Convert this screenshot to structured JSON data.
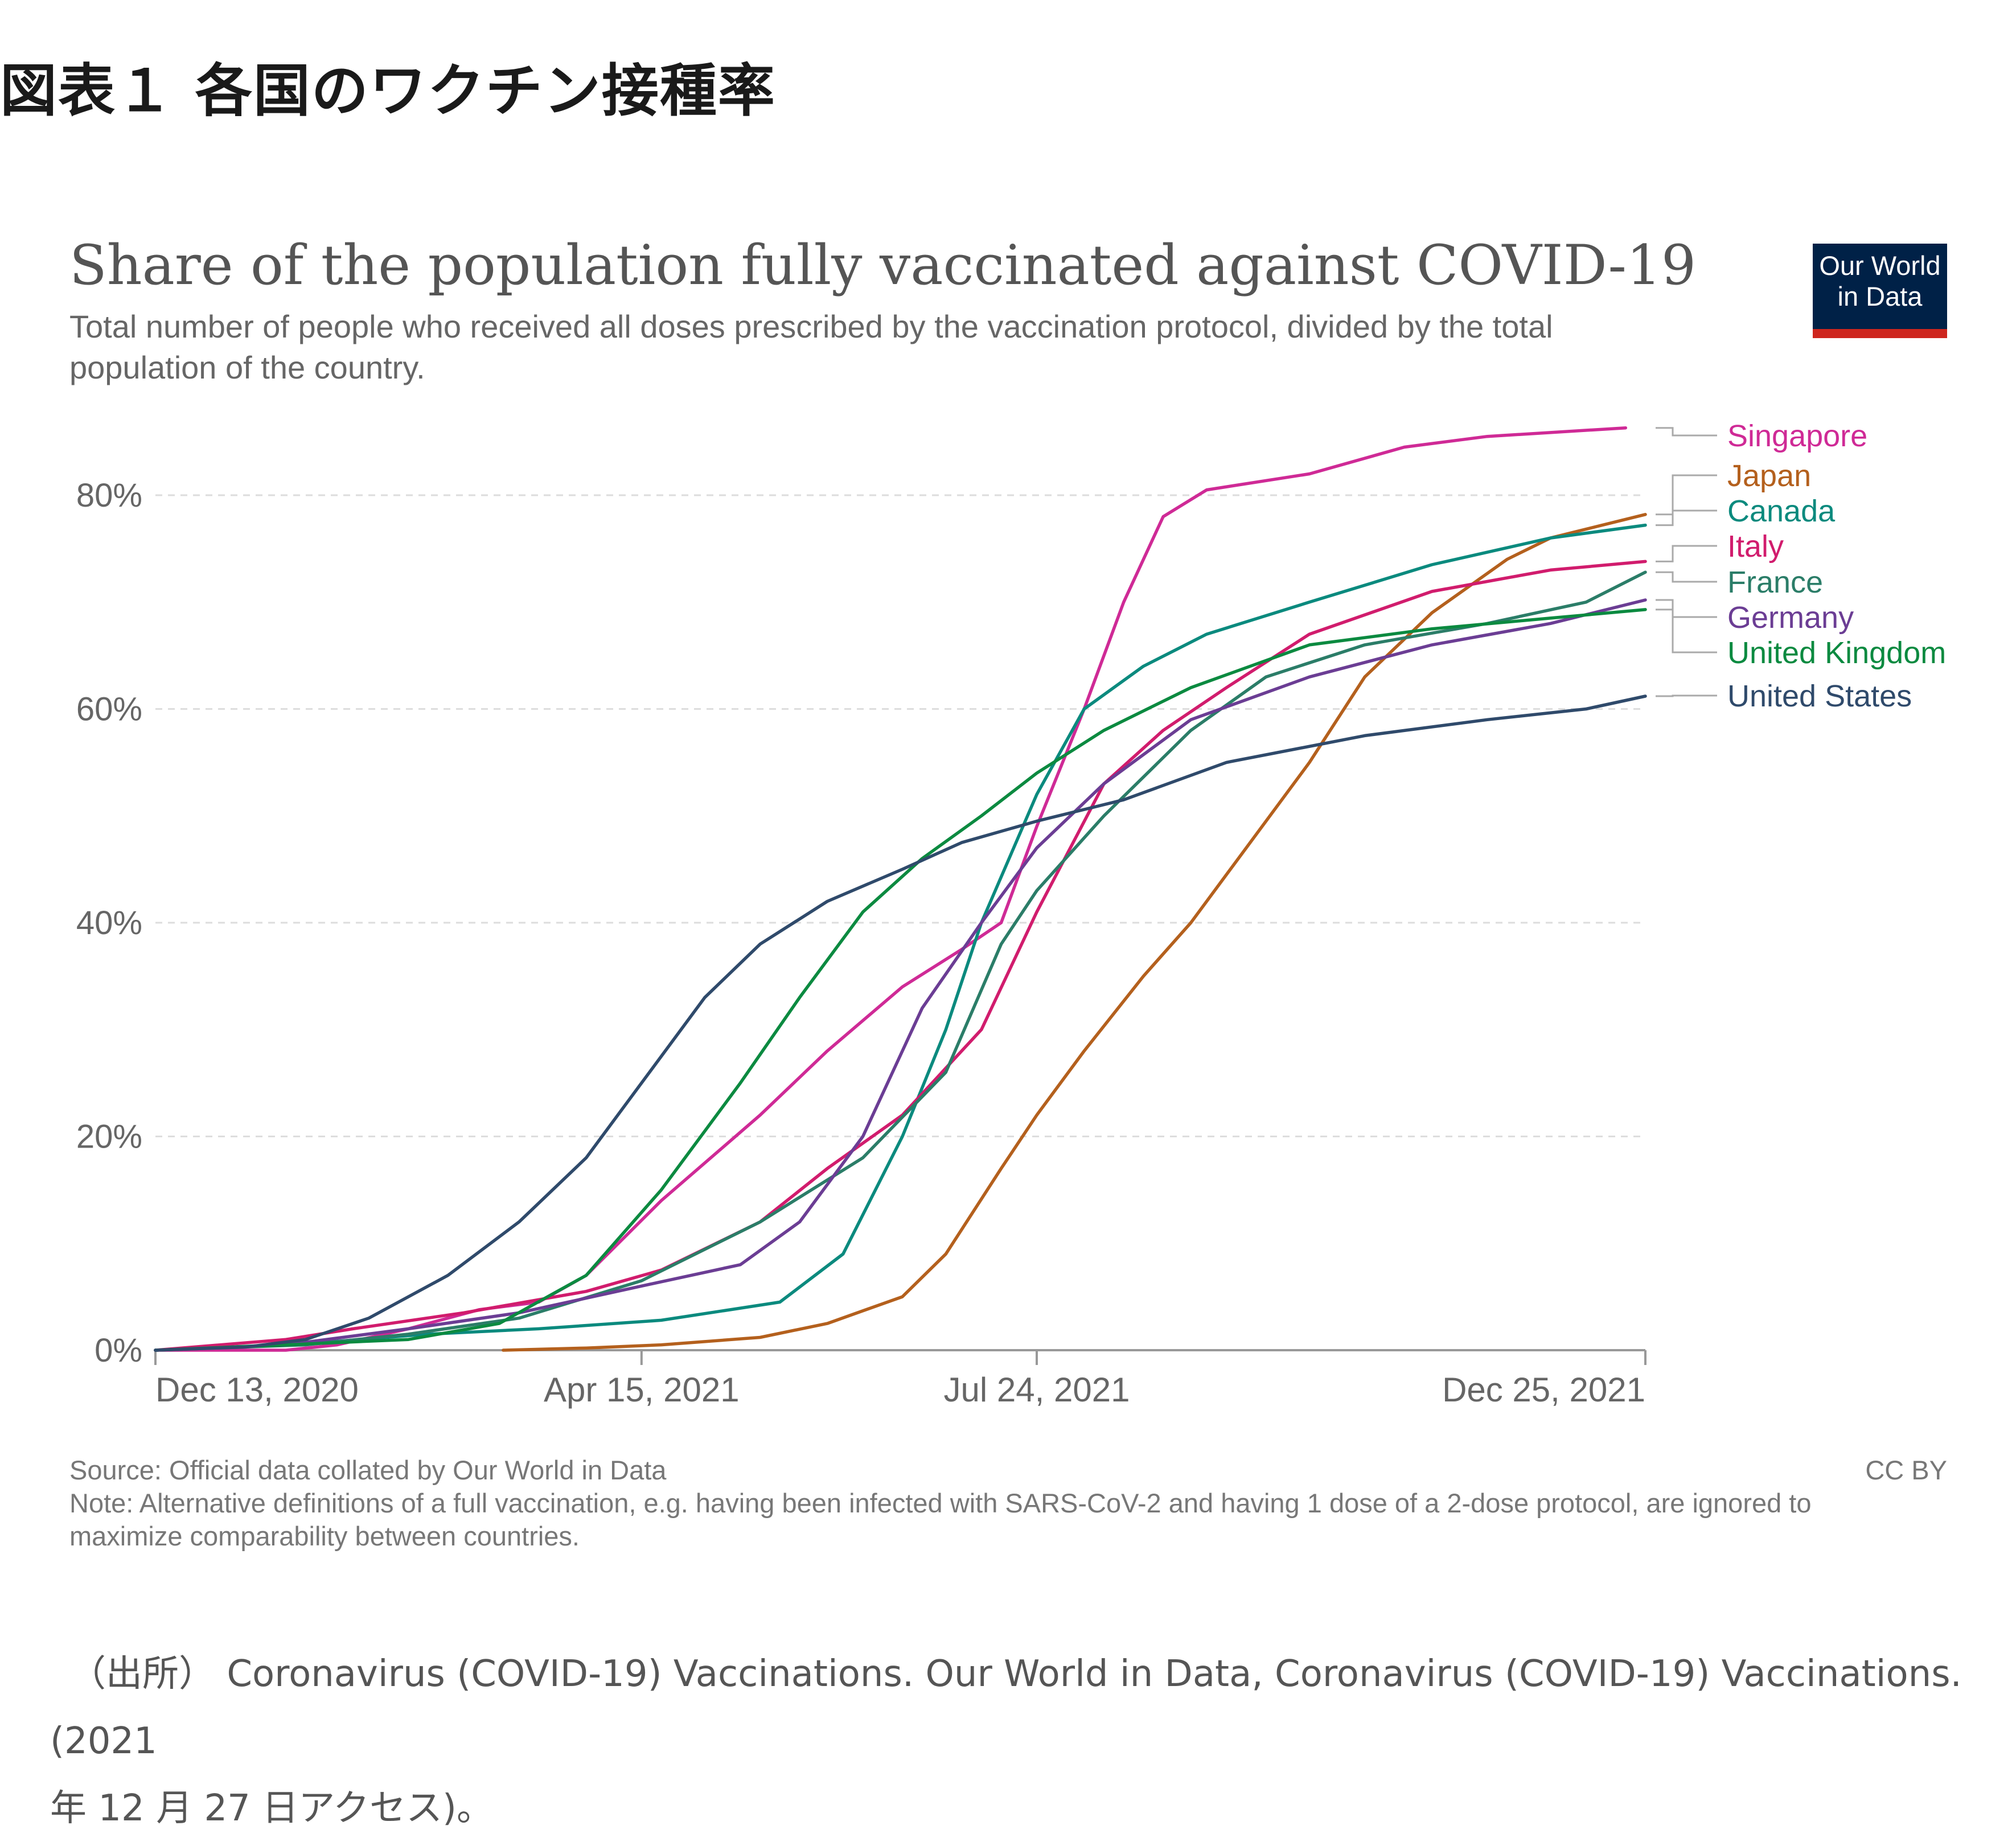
{
  "figure_title": "図表１ 各国のワクチン接種率",
  "logo": {
    "line1": "Our World",
    "line2": "in Data"
  },
  "footer": {
    "source": "Source: Official data collated by Our World in Data",
    "note": "Note: Alternative definitions of a full vaccination, e.g. having been infected with SARS-CoV-2 and having 1 dose of a 2-dose protocol, are ignored to maximize comparability between countries.",
    "license": "CC BY"
  },
  "citation": {
    "line1": "（出所） Coronavirus (COVID-19) Vaccinations. Our World in Data, Coronavirus (COVID-19) Vaccinations. (2021",
    "line2": "年 12 月 27 日アクセス)。"
  },
  "colors": {
    "Singapore": "#cf2a96",
    "Japan": "#b4601d",
    "Canada": "#0b8a7e",
    "Italy": "#d11c6d",
    "France": "#2b7d68",
    "Germany": "#6b3d94",
    "United Kingdom": "#0b8a40",
    "United States": "#2f4a6b"
  },
  "chart_data": {
    "type": "line",
    "title": "Share of the population fully vaccinated against COVID-19",
    "subtitle": "Total number of people who received all doses prescribed by the vaccination protocol, divided by the total population of the country.",
    "xlabel": "",
    "ylabel": "",
    "xlim": [
      "2020-12-13",
      "2021-12-25"
    ],
    "ylim": [
      0,
      85
    ],
    "y_ticks": [
      "0%",
      "20%",
      "40%",
      "60%",
      "80%"
    ],
    "y_tick_values": [
      0,
      20,
      40,
      60,
      80
    ],
    "x_ticks": [
      "Dec 13, 2020",
      "Apr 15, 2021",
      "Jul 24, 2021",
      "Dec 25, 2021"
    ],
    "x_tick_dates": [
      "2020-12-13",
      "2021-04-15",
      "2021-07-24",
      "2021-12-25"
    ],
    "grid": "horizontal dashed",
    "legend": "right, end-of-line labels",
    "series": [
      {
        "name": "Singapore",
        "points": [
          [
            "2020-12-13",
            0
          ],
          [
            "2021-01-15",
            0
          ],
          [
            "2021-01-28",
            0.5
          ],
          [
            "2021-02-15",
            2
          ],
          [
            "2021-03-05",
            3.8
          ],
          [
            "2021-03-20",
            4.5
          ],
          [
            "2021-04-01",
            7
          ],
          [
            "2021-04-20",
            14
          ],
          [
            "2021-05-15",
            22
          ],
          [
            "2021-06-01",
            28
          ],
          [
            "2021-06-20",
            34
          ],
          [
            "2021-07-05",
            37.5
          ],
          [
            "2021-07-15",
            40
          ],
          [
            "2021-07-24",
            49
          ],
          [
            "2021-08-05",
            60
          ],
          [
            "2021-08-15",
            70
          ],
          [
            "2021-08-25",
            78
          ],
          [
            "2021-09-05",
            80.5
          ],
          [
            "2021-10-01",
            82
          ],
          [
            "2021-10-25",
            84.5
          ],
          [
            "2021-11-15",
            85.5
          ],
          [
            "2021-12-20",
            86.3
          ]
        ]
      },
      {
        "name": "Japan",
        "points": [
          [
            "2021-03-11",
            0
          ],
          [
            "2021-04-01",
            0.2
          ],
          [
            "2021-04-20",
            0.5
          ],
          [
            "2021-05-15",
            1.2
          ],
          [
            "2021-06-01",
            2.5
          ],
          [
            "2021-06-20",
            5
          ],
          [
            "2021-07-01",
            9
          ],
          [
            "2021-07-15",
            17
          ],
          [
            "2021-07-24",
            22
          ],
          [
            "2021-08-05",
            28
          ],
          [
            "2021-08-20",
            35
          ],
          [
            "2021-09-01",
            40
          ],
          [
            "2021-09-15",
            47
          ],
          [
            "2021-10-01",
            55
          ],
          [
            "2021-10-15",
            63
          ],
          [
            "2021-11-01",
            69
          ],
          [
            "2021-11-20",
            74
          ],
          [
            "2021-12-01",
            76
          ],
          [
            "2021-12-25",
            78.2
          ]
        ]
      },
      {
        "name": "Canada",
        "points": [
          [
            "2020-12-13",
            0
          ],
          [
            "2021-01-20",
            0.6
          ],
          [
            "2021-02-20",
            1.5
          ],
          [
            "2021-03-20",
            2
          ],
          [
            "2021-04-20",
            2.8
          ],
          [
            "2021-05-20",
            4.5
          ],
          [
            "2021-06-05",
            9
          ],
          [
            "2021-06-20",
            20
          ],
          [
            "2021-07-01",
            30
          ],
          [
            "2021-07-10",
            40
          ],
          [
            "2021-07-24",
            52
          ],
          [
            "2021-08-05",
            60
          ],
          [
            "2021-08-20",
            64
          ],
          [
            "2021-09-05",
            67
          ],
          [
            "2021-10-01",
            70
          ],
          [
            "2021-11-01",
            73.5
          ],
          [
            "2021-12-01",
            76
          ],
          [
            "2021-12-25",
            77.2
          ]
        ]
      },
      {
        "name": "Italy",
        "points": [
          [
            "2020-12-13",
            0
          ],
          [
            "2021-01-15",
            1
          ],
          [
            "2021-02-01",
            2
          ],
          [
            "2021-03-01",
            3.5
          ],
          [
            "2021-04-01",
            5.5
          ],
          [
            "2021-04-20",
            7.5
          ],
          [
            "2021-05-15",
            12
          ],
          [
            "2021-06-01",
            17
          ],
          [
            "2021-06-20",
            22
          ],
          [
            "2021-07-10",
            30
          ],
          [
            "2021-07-24",
            41
          ],
          [
            "2021-08-10",
            53
          ],
          [
            "2021-08-25",
            58
          ],
          [
            "2021-09-10",
            62
          ],
          [
            "2021-10-01",
            67
          ],
          [
            "2021-11-01",
            71
          ],
          [
            "2021-12-01",
            73
          ],
          [
            "2021-12-25",
            73.8
          ]
        ]
      },
      {
        "name": "France",
        "points": [
          [
            "2020-12-13",
            0
          ],
          [
            "2021-01-20",
            0.5
          ],
          [
            "2021-02-15",
            1.5
          ],
          [
            "2021-03-15",
            3
          ],
          [
            "2021-04-15",
            6.5
          ],
          [
            "2021-05-15",
            12
          ],
          [
            "2021-06-10",
            18
          ],
          [
            "2021-07-01",
            26
          ],
          [
            "2021-07-15",
            38
          ],
          [
            "2021-07-24",
            43
          ],
          [
            "2021-08-10",
            50
          ],
          [
            "2021-09-01",
            58
          ],
          [
            "2021-09-20",
            63
          ],
          [
            "2021-10-15",
            66
          ],
          [
            "2021-11-15",
            68
          ],
          [
            "2021-12-10",
            70
          ],
          [
            "2021-12-25",
            72.8
          ]
        ]
      },
      {
        "name": "Germany",
        "points": [
          [
            "2020-12-13",
            0
          ],
          [
            "2021-01-15",
            0.5
          ],
          [
            "2021-02-15",
            2
          ],
          [
            "2021-03-15",
            3.5
          ],
          [
            "2021-04-15",
            6
          ],
          [
            "2021-05-10",
            8
          ],
          [
            "2021-05-25",
            12
          ],
          [
            "2021-06-10",
            20
          ],
          [
            "2021-06-25",
            32
          ],
          [
            "2021-07-10",
            40
          ],
          [
            "2021-07-24",
            47
          ],
          [
            "2021-08-10",
            53
          ],
          [
            "2021-09-01",
            59
          ],
          [
            "2021-10-01",
            63
          ],
          [
            "2021-11-01",
            66
          ],
          [
            "2021-12-01",
            68
          ],
          [
            "2021-12-25",
            70.2
          ]
        ]
      },
      {
        "name": "United Kingdom",
        "points": [
          [
            "2020-12-13",
            0
          ],
          [
            "2021-01-15",
            0.5
          ],
          [
            "2021-02-15",
            1
          ],
          [
            "2021-03-10",
            2.5
          ],
          [
            "2021-04-01",
            7
          ],
          [
            "2021-04-20",
            15
          ],
          [
            "2021-05-10",
            25
          ],
          [
            "2021-05-25",
            33
          ],
          [
            "2021-06-10",
            41
          ],
          [
            "2021-06-25",
            46
          ],
          [
            "2021-07-10",
            50
          ],
          [
            "2021-07-24",
            54
          ],
          [
            "2021-08-10",
            58
          ],
          [
            "2021-09-01",
            62
          ],
          [
            "2021-10-01",
            66
          ],
          [
            "2021-11-01",
            67.5
          ],
          [
            "2021-12-01",
            68.5
          ],
          [
            "2021-12-25",
            69.3
          ]
        ]
      },
      {
        "name": "United States",
        "points": [
          [
            "2020-12-13",
            0
          ],
          [
            "2021-01-05",
            0.3
          ],
          [
            "2021-01-20",
            1
          ],
          [
            "2021-02-05",
            3
          ],
          [
            "2021-02-25",
            7
          ],
          [
            "2021-03-15",
            12
          ],
          [
            "2021-04-01",
            18
          ],
          [
            "2021-04-15",
            25
          ],
          [
            "2021-05-01",
            33
          ],
          [
            "2021-05-15",
            38
          ],
          [
            "2021-06-01",
            42
          ],
          [
            "2021-06-20",
            45
          ],
          [
            "2021-07-05",
            47.5
          ],
          [
            "2021-07-24",
            49.5
          ],
          [
            "2021-08-15",
            51.5
          ],
          [
            "2021-09-10",
            55
          ],
          [
            "2021-10-15",
            57.5
          ],
          [
            "2021-11-15",
            59
          ],
          [
            "2021-12-10",
            60
          ],
          [
            "2021-12-25",
            61.2
          ]
        ]
      }
    ]
  }
}
